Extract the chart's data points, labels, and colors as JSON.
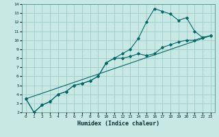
{
  "xlabel": "Humidex (Indice chaleur)",
  "bg_color": "#c8e8e4",
  "grid_color": "#a0ccc8",
  "line_color": "#006868",
  "xlim": [
    -0.5,
    23.5
  ],
  "ylim": [
    2,
    14
  ],
  "xticks": [
    0,
    1,
    2,
    3,
    4,
    5,
    6,
    7,
    8,
    9,
    10,
    11,
    12,
    13,
    14,
    15,
    16,
    17,
    18,
    19,
    20,
    21,
    22,
    23
  ],
  "yticks": [
    2,
    3,
    4,
    5,
    6,
    7,
    8,
    9,
    10,
    11,
    12,
    13,
    14
  ],
  "line1_x": [
    0,
    1,
    2,
    3,
    4,
    5,
    6,
    7,
    8,
    9,
    10,
    11,
    12,
    13,
    14,
    15,
    16,
    17,
    18,
    19,
    20,
    21,
    22,
    23
  ],
  "line1_y": [
    3.5,
    2.0,
    2.8,
    3.2,
    4.0,
    4.3,
    5.0,
    5.2,
    5.5,
    6.0,
    7.5,
    8.0,
    8.5,
    9.0,
    10.2,
    12.0,
    13.5,
    13.2,
    12.9,
    12.2,
    12.5,
    11.0,
    10.3,
    10.5
  ],
  "line2_x": [
    0,
    1,
    2,
    3,
    4,
    5,
    6,
    7,
    8,
    9,
    10,
    11,
    12,
    13,
    14,
    15,
    16,
    17,
    18,
    19,
    20,
    21,
    22,
    23
  ],
  "line2_y": [
    3.5,
    2.0,
    2.8,
    3.2,
    4.0,
    4.3,
    5.0,
    5.2,
    5.5,
    6.0,
    7.5,
    8.0,
    8.0,
    8.2,
    8.5,
    8.3,
    8.5,
    9.2,
    9.5,
    9.8,
    10.0,
    10.0,
    10.3,
    10.5
  ],
  "line3_x": [
    0,
    23
  ],
  "line3_y": [
    3.5,
    10.5
  ]
}
